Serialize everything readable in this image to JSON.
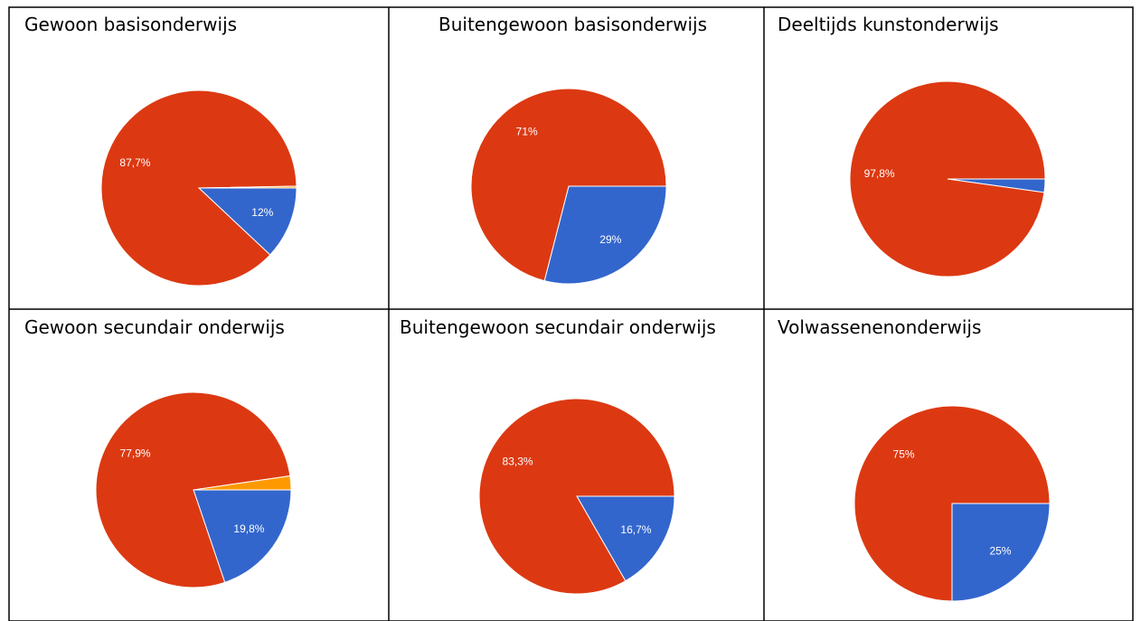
{
  "chart_data": [
    {
      "type": "pie",
      "title": "Gewoon basisonderwijs",
      "values": [
        12,
        87.7,
        0.3
      ],
      "value_labels": [
        "12%",
        "87,7%",
        null
      ],
      "colors": [
        "#3366cc",
        "#dc3912",
        "#ff9900"
      ]
    },
    {
      "type": "pie",
      "title": "Buitengewoon basisonderwijs",
      "values": [
        29,
        71
      ],
      "value_labels": [
        "29%",
        "71%"
      ],
      "colors": [
        "#3366cc",
        "#dc3912"
      ]
    },
    {
      "type": "pie",
      "title": "Deeltijds kunstonderwijs",
      "values": [
        2.2,
        97.8
      ],
      "value_labels": [
        null,
        "97,8%"
      ],
      "colors": [
        "#3366cc",
        "#dc3912"
      ]
    },
    {
      "type": "pie",
      "title": "Gewoon secundair onderwijs",
      "values": [
        19.8,
        77.9,
        2.3
      ],
      "value_labels": [
        "19,8%",
        "77,9%",
        null
      ],
      "colors": [
        "#3366cc",
        "#dc3912",
        "#ff9900"
      ]
    },
    {
      "type": "pie",
      "title": "Buitengewoon secundair onderwijs",
      "values": [
        16.7,
        83.3
      ],
      "value_labels": [
        "16,7%",
        "83,3%"
      ],
      "colors": [
        "#3366cc",
        "#dc3912"
      ]
    },
    {
      "type": "pie",
      "title": "Volwassenenonderwijs",
      "values": [
        25,
        75
      ],
      "value_labels": [
        "25%",
        "75%"
      ],
      "colors": [
        "#3366cc",
        "#dc3912"
      ]
    }
  ]
}
